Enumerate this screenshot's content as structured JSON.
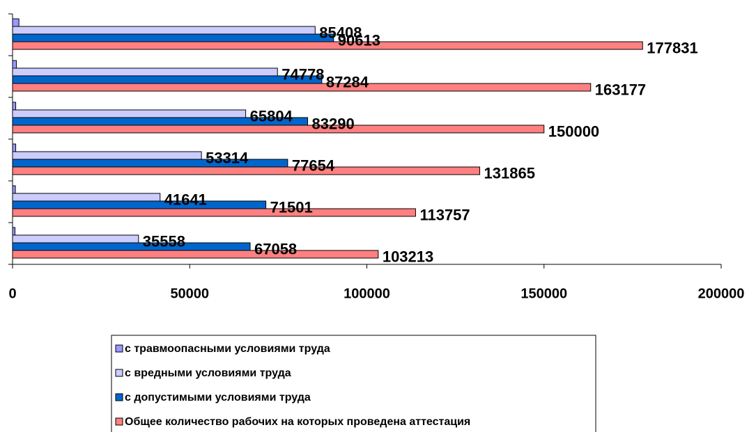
{
  "chart_data": {
    "type": "hbar",
    "categories": [
      null,
      null,
      null,
      null,
      null,
      null
    ],
    "series": [
      {
        "name": "с травмоопасными условиями труда",
        "color": "#9999ff",
        "data_labels": false,
        "values": [
          700,
          800,
          900,
          900,
          1100,
          1800
        ]
      },
      {
        "name": "с вредными условиями труда",
        "color": "#ccccff",
        "data_labels": true,
        "values": [
          35558,
          41641,
          53314,
          65804,
          74778,
          85408
        ]
      },
      {
        "name": "с допустимыми условиями труда",
        "color": "#0066cc",
        "data_labels": true,
        "values": [
          67058,
          71501,
          77654,
          83290,
          87284,
          90613
        ]
      },
      {
        "name": "Общее количество рабочих на которых проведена аттестация",
        "color": "#ff8080",
        "data_labels": true,
        "values": [
          103213,
          113757,
          131865,
          150000,
          163177,
          177831
        ]
      }
    ],
    "xlim": [
      0,
      200000
    ],
    "xticks": [
      0,
      50000,
      100000,
      150000,
      200000
    ],
    "grid": false,
    "legend": "bottom"
  }
}
